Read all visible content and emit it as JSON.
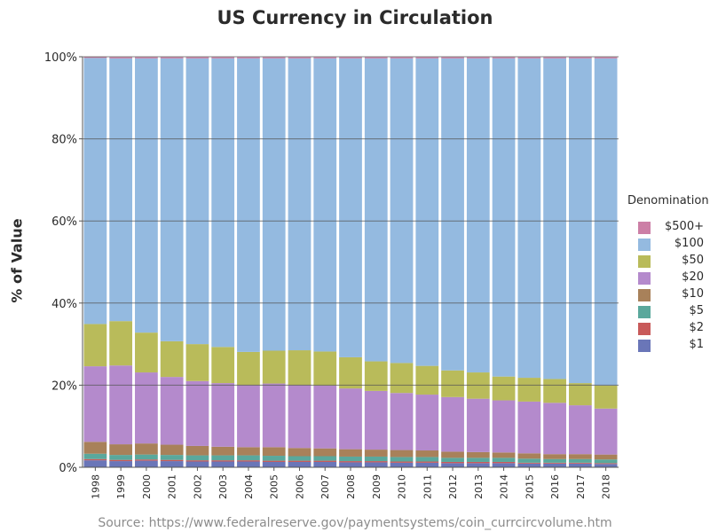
{
  "chart_data": {
    "type": "bar",
    "stacked": true,
    "title": "US Currency in Circulation",
    "ylabel": "% of Value",
    "xlabel": "",
    "ylim": [
      0,
      100
    ],
    "yticks": [
      "0%",
      "20%",
      "40%",
      "60%",
      "80%",
      "100%"
    ],
    "grid": true,
    "legend": {
      "title": "Denomination",
      "placement": "right"
    },
    "source": "Source: https://www.federalreserve.gov/paymentsystems/coin_currcircvolume.htm",
    "categories": [
      "1998",
      "1999",
      "2000",
      "2001",
      "2002",
      "2003",
      "2004",
      "2005",
      "2006",
      "2007",
      "2008",
      "2009",
      "2010",
      "2011",
      "2012",
      "2013",
      "2014",
      "2015",
      "2016",
      "2017",
      "2018"
    ],
    "series": [
      {
        "name": "$1",
        "color": "#6a76b8",
        "values": [
          1.7,
          1.5,
          1.6,
          1.5,
          1.4,
          1.4,
          1.4,
          1.3,
          1.3,
          1.3,
          1.2,
          1.2,
          1.1,
          1.1,
          1.0,
          1.0,
          1.0,
          0.9,
          0.9,
          0.9,
          0.8
        ]
      },
      {
        "name": "$2",
        "color": "#c85a5a",
        "values": [
          0.3,
          0.3,
          0.3,
          0.3,
          0.3,
          0.3,
          0.3,
          0.3,
          0.3,
          0.3,
          0.3,
          0.3,
          0.3,
          0.3,
          0.3,
          0.3,
          0.3,
          0.2,
          0.2,
          0.2,
          0.2
        ]
      },
      {
        "name": "$5",
        "color": "#5aa89c",
        "values": [
          1.3,
          1.2,
          1.2,
          1.2,
          1.2,
          1.2,
          1.2,
          1.2,
          1.1,
          1.1,
          1.1,
          1.1,
          1.1,
          1.1,
          1.0,
          1.0,
          1.0,
          1.0,
          0.9,
          0.9,
          0.9
        ]
      },
      {
        "name": "$10",
        "color": "#a8815a",
        "values": [
          2.9,
          2.6,
          2.7,
          2.5,
          2.3,
          2.1,
          2.0,
          2.1,
          2.0,
          1.9,
          1.8,
          1.7,
          1.7,
          1.6,
          1.5,
          1.4,
          1.3,
          1.3,
          1.2,
          1.2,
          1.2
        ]
      },
      {
        "name": "$20",
        "color": "#b48acc",
        "values": [
          18.4,
          19.2,
          17.3,
          16.5,
          15.8,
          15.5,
          15.1,
          15.5,
          15.3,
          15.3,
          14.8,
          14.3,
          13.9,
          13.6,
          13.3,
          13.0,
          12.7,
          12.6,
          12.5,
          11.9,
          11.2
        ]
      },
      {
        "name": "$50",
        "color": "#b9bb5a",
        "values": [
          10.3,
          10.8,
          9.7,
          8.7,
          9.0,
          8.8,
          8.1,
          8.0,
          8.5,
          8.3,
          7.6,
          7.2,
          7.3,
          7.0,
          6.5,
          6.4,
          5.8,
          5.8,
          5.8,
          5.4,
          5.6
        ]
      },
      {
        "name": "$100",
        "color": "#94bae0",
        "values": [
          64.8,
          64.0,
          66.8,
          68.9,
          69.6,
          70.3,
          71.5,
          71.2,
          71.1,
          71.4,
          72.8,
          73.8,
          74.2,
          74.9,
          76.0,
          76.5,
          77.5,
          77.8,
          78.1,
          79.1,
          79.7
        ]
      },
      {
        "name": "$500+",
        "color": "#cc7fa6",
        "values": [
          0.3,
          0.3,
          0.3,
          0.3,
          0.3,
          0.3,
          0.3,
          0.3,
          0.3,
          0.3,
          0.3,
          0.3,
          0.3,
          0.3,
          0.3,
          0.3,
          0.3,
          0.3,
          0.3,
          0.3,
          0.3
        ]
      }
    ]
  }
}
